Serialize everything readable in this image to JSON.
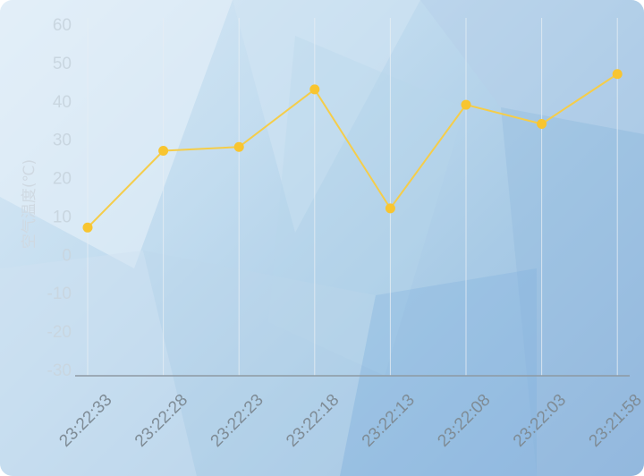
{
  "chart_data": {
    "type": "line",
    "ylabel": "空气温度(℃)",
    "xlabel": "",
    "ylim": [
      -30,
      60
    ],
    "yticks": [
      60,
      50,
      40,
      30,
      20,
      10,
      0,
      -10,
      -20,
      -30
    ],
    "categories": [
      "23:22:33",
      "23:22:28",
      "23:22:23",
      "23:22:18",
      "23:22:13",
      "23:22:08",
      "23:22:03",
      "23:21:58"
    ],
    "series": [
      {
        "values": [
          7,
          27,
          28,
          43,
          12,
          39,
          34,
          47
        ]
      }
    ],
    "grid": "vertical",
    "colors": {
      "line": "#f5cd4a",
      "point": "#f8c530",
      "axis": "#8e9aa3",
      "grid": "#e7eef4"
    }
  }
}
